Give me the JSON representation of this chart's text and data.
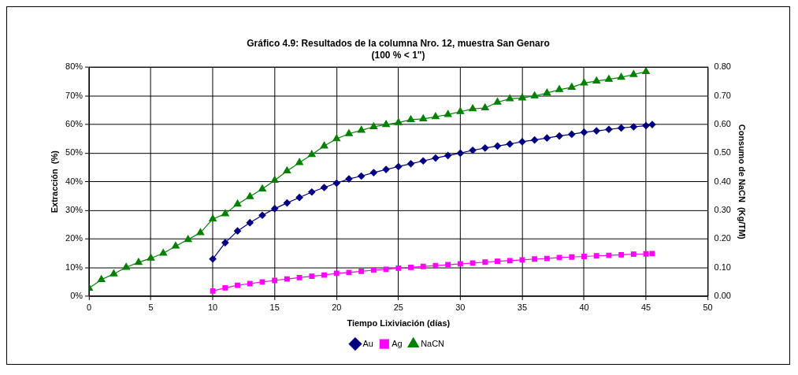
{
  "chart_data": {
    "type": "line",
    "title": [
      "Gráfico 4.9: Resultados de la columna Nro. 12, muestra San Genaro",
      "(100 % < 1\")"
    ],
    "xlabel": "Tiempo Lixiviación (días)",
    "ylabel": "Extracción  (%)",
    "y2label": "Consumo de NaCN  (Kg/TM)",
    "xlim": [
      0,
      50
    ],
    "xticks": [
      0,
      5,
      10,
      15,
      20,
      25,
      30,
      35,
      40,
      45,
      50
    ],
    "ylim": [
      0,
      80
    ],
    "yticks": [
      {
        "value": 0,
        "label": "0%"
      },
      {
        "value": 10,
        "label": "10%"
      },
      {
        "value": 20,
        "label": "20%"
      },
      {
        "value": 30,
        "label": "30%"
      },
      {
        "value": 40,
        "label": "40%"
      },
      {
        "value": 50,
        "label": "50%"
      },
      {
        "value": 60,
        "label": "60%"
      },
      {
        "value": 70,
        "label": "70%"
      },
      {
        "value": 80,
        "label": "80%"
      }
    ],
    "y2lim": [
      0,
      0.8
    ],
    "y2ticks": [
      {
        "value": 0,
        "label": "0.00"
      },
      {
        "value": 0.1,
        "label": "0.10"
      },
      {
        "value": 0.2,
        "label": "0.20"
      },
      {
        "value": 0.3,
        "label": "0.30"
      },
      {
        "value": 0.4,
        "label": "0.40"
      },
      {
        "value": 0.5,
        "label": "0.50"
      },
      {
        "value": 0.6,
        "label": "0.60"
      },
      {
        "value": 0.7,
        "label": "0.70"
      },
      {
        "value": 0.8,
        "label": "0.80"
      }
    ],
    "grid": true,
    "legend": "bottom",
    "line_style": "solid",
    "series": [
      {
        "name": "Au",
        "color": "#000080",
        "marker": "diamond",
        "x": [
          10,
          11,
          12,
          13,
          14,
          15,
          16,
          17,
          18,
          19,
          20,
          21,
          22,
          23,
          24,
          25,
          26,
          27,
          28,
          29,
          30,
          31,
          32,
          33,
          34,
          35,
          36,
          37,
          38,
          39,
          40,
          41,
          42,
          43,
          44,
          45,
          45.5
        ],
        "values": [
          13,
          18.7,
          22.8,
          25.7,
          28.3,
          30.6,
          32.6,
          34.5,
          36.4,
          38,
          39.5,
          41,
          42,
          43.2,
          44.3,
          45.3,
          46.3,
          47.3,
          48.3,
          49.2,
          50,
          51,
          51.8,
          52.5,
          53.2,
          54,
          54.6,
          55.3,
          56,
          56.6,
          57.3,
          57.8,
          58.3,
          58.8,
          59.2,
          59.6,
          60
        ]
      },
      {
        "name": "Ag",
        "color": "#ff00ff",
        "marker": "square",
        "x": [
          10,
          11,
          12,
          13,
          14,
          15,
          16,
          17,
          18,
          19,
          20,
          21,
          22,
          23,
          24,
          25,
          26,
          27,
          28,
          29,
          30,
          31,
          32,
          33,
          34,
          35,
          36,
          37,
          38,
          39,
          40,
          41,
          42,
          43,
          44,
          45,
          45.5
        ],
        "values": [
          1.8,
          2.9,
          3.8,
          4.4,
          5,
          5.5,
          6,
          6.5,
          7,
          7.4,
          8,
          8.3,
          8.7,
          9.1,
          9.4,
          9.8,
          10.1,
          10.4,
          10.7,
          11,
          11.3,
          11.6,
          11.9,
          12.2,
          12.4,
          12.7,
          13,
          13.2,
          13.5,
          13.7,
          13.9,
          14.1,
          14.3,
          14.5,
          14.7,
          14.8,
          14.9
        ]
      },
      {
        "name": "NaCN",
        "color": "#008000",
        "marker": "triangle",
        "axis": "y2",
        "x": [
          0,
          1,
          2,
          3,
          4,
          5,
          6,
          7,
          8,
          9,
          10,
          11,
          12,
          13,
          14,
          15,
          16,
          17,
          18,
          19,
          20,
          21,
          22,
          23,
          24,
          25,
          26,
          27,
          28,
          29,
          30,
          31,
          32,
          33,
          34,
          35,
          36,
          37,
          38,
          39,
          40,
          41,
          42,
          43,
          44,
          45
        ],
        "values": [
          0.028,
          0.058,
          0.078,
          0.101,
          0.118,
          0.133,
          0.15,
          0.175,
          0.198,
          0.222,
          0.27,
          0.288,
          0.322,
          0.348,
          0.375,
          0.405,
          0.438,
          0.467,
          0.495,
          0.525,
          0.55,
          0.568,
          0.58,
          0.592,
          0.6,
          0.607,
          0.617,
          0.62,
          0.627,
          0.635,
          0.645,
          0.655,
          0.658,
          0.678,
          0.69,
          0.693,
          0.7,
          0.71,
          0.722,
          0.73,
          0.745,
          0.752,
          0.758,
          0.765,
          0.775,
          0.785
        ]
      }
    ]
  }
}
